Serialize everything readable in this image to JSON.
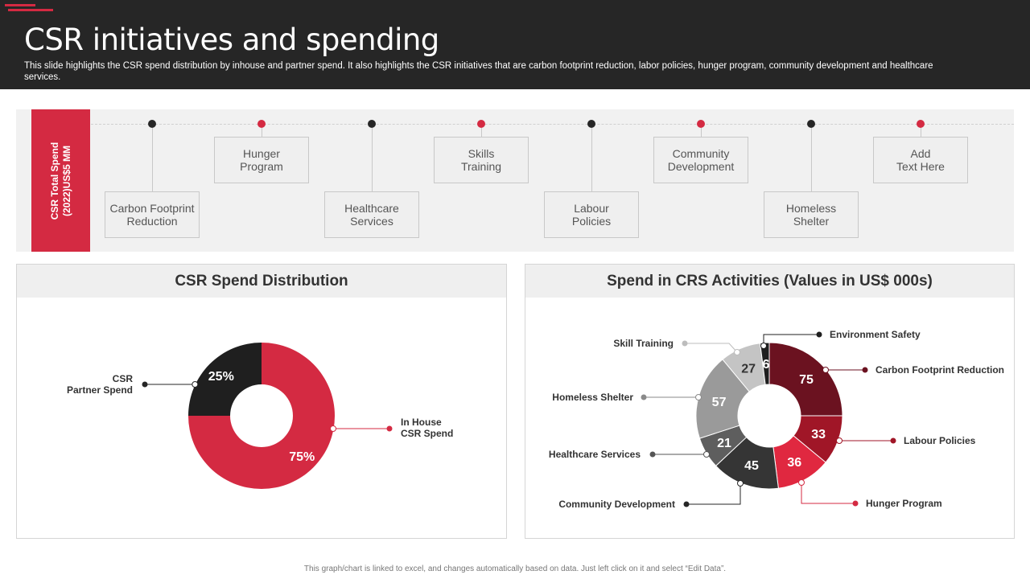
{
  "header": {
    "title": "CSR initiatives and spending",
    "subtitle": "This slide highlights the CSR spend distribution by inhouse and partner spend. It also highlights the CSR initiatives that are carbon footprint reduction, labor policies, hunger program, community development and healthcare services."
  },
  "colors": {
    "accent": "#d42a42",
    "dark": "#262626"
  },
  "timeline": {
    "total_label": "CSR Total Spend\n(2022)US$5 MM",
    "items": [
      {
        "label": "Carbon Footprint\nReduction",
        "dot_color": "#262626"
      },
      {
        "label": "Hunger\nProgram",
        "dot_color": "#d42a42"
      },
      {
        "label": "Healthcare\nServices",
        "dot_color": "#262626"
      },
      {
        "label": "Skills\nTraining",
        "dot_color": "#d42a42"
      },
      {
        "label": "Labour\nPolicies",
        "dot_color": "#262626"
      },
      {
        "label": "Community\nDevelopment",
        "dot_color": "#d42a42"
      },
      {
        "label": "Homeless\nShelter",
        "dot_color": "#262626"
      },
      {
        "label": "Add\nText Here",
        "dot_color": "#d42a42"
      }
    ]
  },
  "chart_data": [
    {
      "type": "pie",
      "title": "CSR Spend Distribution",
      "categories": [
        "CSR\nPartner Spend",
        "In House\nCSR Spend"
      ],
      "values": [
        25,
        75
      ],
      "value_labels": [
        "25%",
        "75%"
      ],
      "colors": [
        "#1f1f1f",
        "#d42a42"
      ]
    },
    {
      "type": "pie",
      "title": "Spend in CRS Activities (Values in US$ 000s)",
      "categories": [
        "Carbon Footprint Reduction",
        "Labour Policies",
        "Hunger Program",
        "Community Development",
        "Healthcare Services",
        "Homeless Shelter",
        "Skill Training",
        "Environment  Safety"
      ],
      "values": [
        75,
        33,
        36,
        45,
        21,
        57,
        27,
        6
      ],
      "colors": [
        "#6b1220",
        "#a01627",
        "#e02840",
        "#353535",
        "#5e5e5e",
        "#9a9a9a",
        "#c4c4c4",
        "#1f1f1f"
      ]
    }
  ],
  "footer": "This graph/chart is linked to excel, and changes automatically based on data. Just left click on it and select “Edit Data”."
}
